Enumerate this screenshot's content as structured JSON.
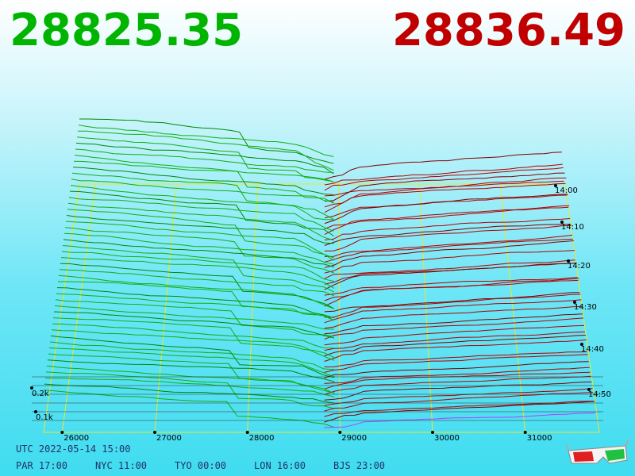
{
  "bid": "28825.35",
  "ask": "28836.49",
  "price_axis": [
    "26000",
    "27000",
    "28000",
    "29000",
    "30000",
    "31000"
  ],
  "time_axis": [
    "14:00",
    "14:10",
    "14:20",
    "14:30",
    "14:40",
    "14:50"
  ],
  "depth_axis": [
    "0.2k",
    "0.1k"
  ],
  "clock": {
    "utc": "UTC 2022-05-14 15:00",
    "zones": [
      "PAR 17:00",
      "NYC 11:00",
      "TYO 00:00",
      "LON 16:00",
      "BJS 23:00"
    ]
  }
}
